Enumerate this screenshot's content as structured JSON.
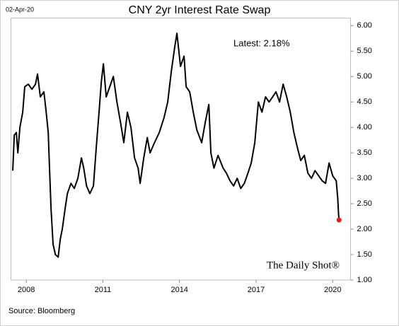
{
  "chart_data": {
    "type": "line",
    "date_stamp": "02-Apr-20",
    "title": "CNY 2yr Interest Rate Swap",
    "annotation": "Latest:  2.18%",
    "watermark": "The Daily Shot®",
    "source": "Source: Bloomberg",
    "color": "#000000",
    "latest_marker_color": "#e02020",
    "x": [
      2007.47,
      2007.53,
      2007.61,
      2007.67,
      2007.75,
      2007.86,
      2007.94,
      2008.08,
      2008.22,
      2008.36,
      2008.44,
      2008.55,
      2008.69,
      2008.78,
      2008.86,
      2008.91,
      2008.97,
      2009.05,
      2009.14,
      2009.25,
      2009.33,
      2009.41,
      2009.52,
      2009.61,
      2009.75,
      2009.88,
      2010.02,
      2010.16,
      2010.25,
      2010.36,
      2010.49,
      2010.63,
      2010.74,
      2010.85,
      2010.94,
      2011.02,
      2011.13,
      2011.27,
      2011.41,
      2011.55,
      2011.69,
      2011.82,
      2011.96,
      2012.1,
      2012.24,
      2012.38,
      2012.46,
      2012.6,
      2012.74,
      2012.85,
      2013.02,
      2013.21,
      2013.4,
      2013.54,
      2013.68,
      2013.82,
      2013.9,
      2014.04,
      2014.18,
      2014.26,
      2014.4,
      2014.54,
      2014.68,
      2014.87,
      2015.01,
      2015.15,
      2015.23,
      2015.35,
      2015.51,
      2015.71,
      2015.84,
      2015.98,
      2016.12,
      2016.26,
      2016.4,
      2016.54,
      2016.68,
      2016.81,
      2016.95,
      2017.09,
      2017.23,
      2017.37,
      2017.51,
      2017.65,
      2017.78,
      2017.92,
      2018.06,
      2018.2,
      2018.34,
      2018.48,
      2018.62,
      2018.75,
      2018.89,
      2019.03,
      2019.17,
      2019.31,
      2019.45,
      2019.59,
      2019.72,
      2019.86,
      2020.0,
      2020.14,
      2020.2,
      2020.23,
      2020.25
    ],
    "values": [
      3.15,
      3.85,
      3.9,
      3.5,
      4.0,
      4.3,
      4.8,
      4.85,
      4.75,
      4.85,
      5.05,
      4.6,
      4.7,
      4.3,
      3.9,
      3.2,
      2.4,
      1.7,
      1.5,
      1.45,
      1.8,
      2.0,
      2.4,
      2.7,
      2.9,
      2.8,
      3.0,
      3.4,
      3.2,
      2.85,
      2.7,
      2.85,
      3.6,
      4.3,
      4.9,
      5.25,
      4.6,
      4.8,
      5.0,
      4.5,
      4.1,
      3.7,
      4.3,
      4.0,
      3.4,
      3.2,
      2.9,
      3.4,
      3.8,
      3.5,
      3.7,
      3.9,
      4.2,
      4.5,
      5.1,
      5.6,
      5.85,
      5.2,
      5.4,
      4.8,
      4.7,
      4.3,
      3.95,
      3.7,
      4.1,
      4.45,
      3.5,
      3.2,
      3.45,
      3.2,
      3.1,
      2.95,
      2.85,
      3.0,
      2.8,
      2.9,
      3.1,
      3.3,
      3.7,
      4.5,
      4.3,
      4.6,
      4.5,
      4.6,
      4.7,
      4.5,
      4.85,
      4.6,
      4.3,
      3.9,
      3.6,
      3.35,
      3.45,
      3.1,
      3.0,
      3.15,
      3.05,
      2.95,
      2.9,
      3.3,
      3.05,
      2.95,
      2.6,
      2.3,
      2.18
    ],
    "xlim": [
      2007.4,
      2020.7
    ],
    "xticks": [
      2008,
      2011,
      2014,
      2017,
      2020
    ],
    "ylim": [
      1,
      6.15
    ],
    "yticks": [
      {
        "value": 1,
        "label": "1.00"
      },
      {
        "value": 1.5,
        "label": "1.50"
      },
      {
        "value": 2,
        "label": "2.00"
      },
      {
        "value": 2.5,
        "label": "2.50"
      },
      {
        "value": 3,
        "label": "3.00"
      },
      {
        "value": 3.5,
        "label": "3.50"
      },
      {
        "value": 4,
        "label": "4.00"
      },
      {
        "value": 4.5,
        "label": "4.50"
      },
      {
        "value": 5,
        "label": "5.00"
      },
      {
        "value": 5.5,
        "label": "5.50"
      },
      {
        "value": 6,
        "label": "6.00"
      }
    ],
    "y_axis_side": "right",
    "grid": false
  }
}
